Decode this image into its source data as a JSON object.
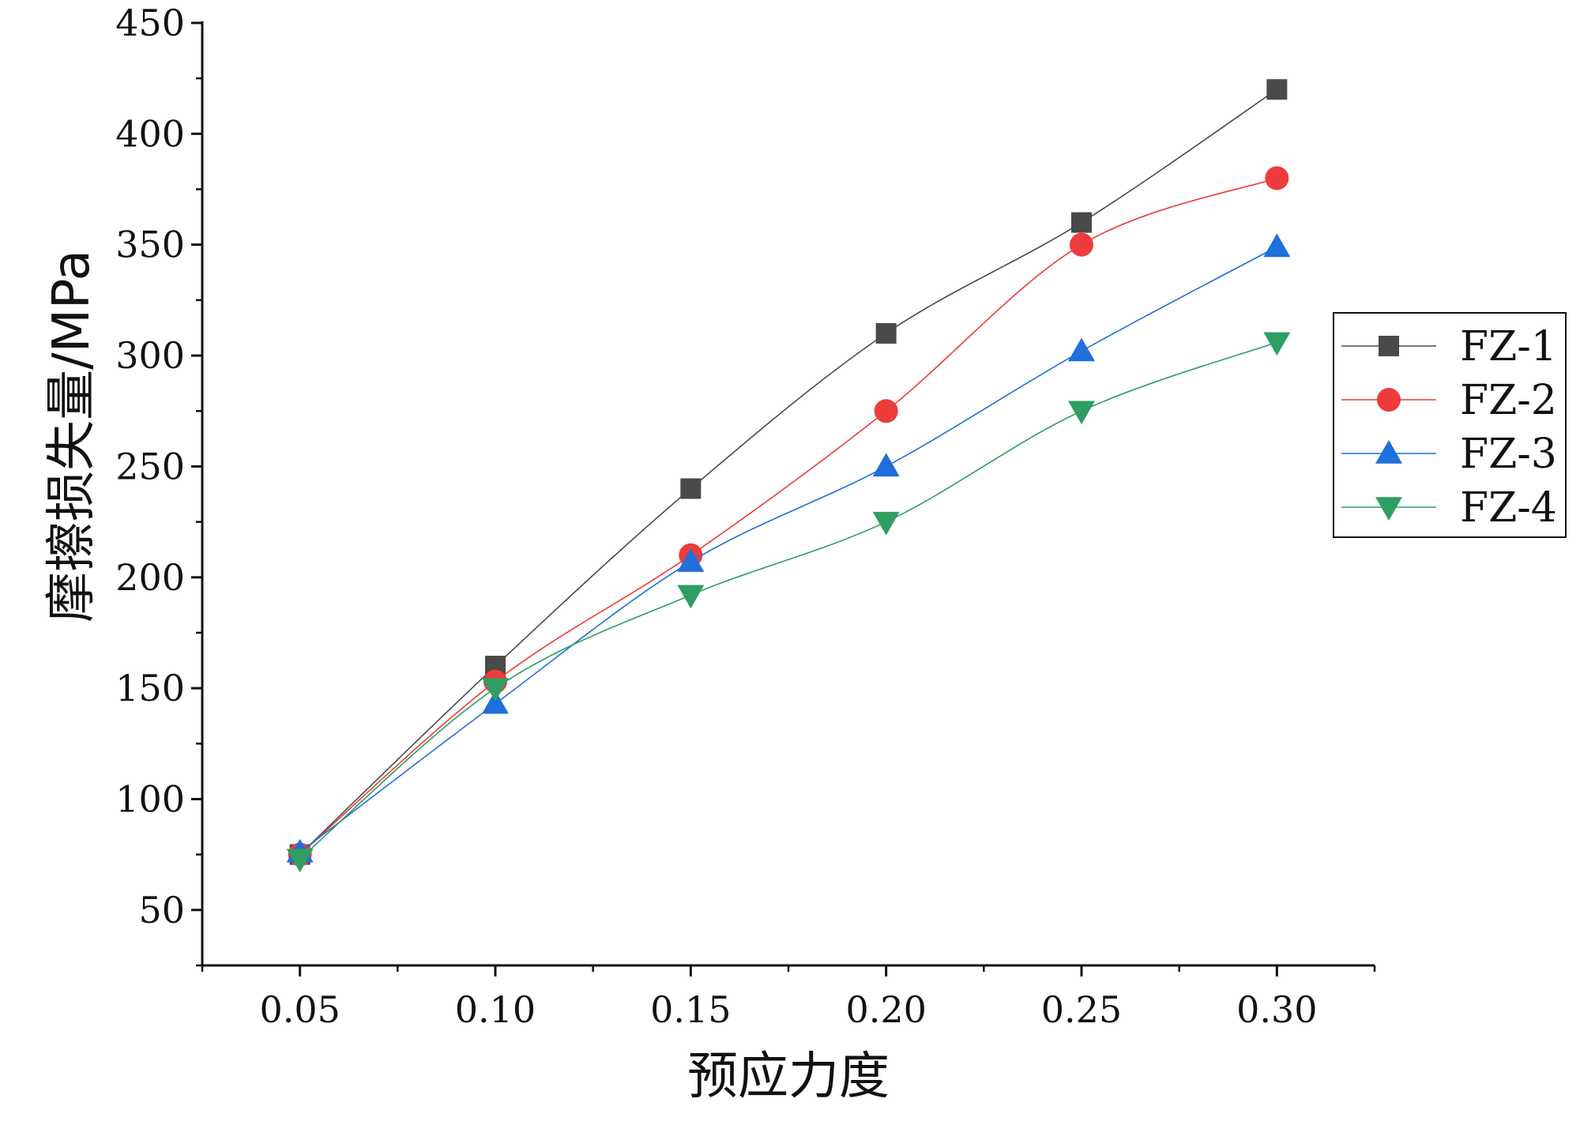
{
  "chart_data": {
    "type": "line",
    "xlabel": "预应力度",
    "ylabel": "摩擦损失量/MPa",
    "x": [
      0.05,
      0.1,
      0.15,
      0.2,
      0.25,
      0.3
    ],
    "x_tick_labels": [
      "0.05",
      "0.10",
      "0.15",
      "0.20",
      "0.25",
      "0.30"
    ],
    "xlim": [
      0.025,
      0.325
    ],
    "ylim": [
      25,
      450
    ],
    "y_ticks": [
      50,
      100,
      150,
      200,
      250,
      300,
      350,
      400,
      450
    ],
    "y_tick_labels": [
      "50",
      "100",
      "150",
      "200",
      "250",
      "300",
      "350",
      "400",
      "450"
    ],
    "grid": false,
    "legend_position": "right",
    "series": [
      {
        "name": "FZ-1",
        "color": "#4a4a4a",
        "marker": "square",
        "values": [
          75,
          160,
          240,
          310,
          360,
          420
        ]
      },
      {
        "name": "FZ-2",
        "color": "#ee3b3b",
        "marker": "circle",
        "values": [
          75,
          153,
          210,
          275,
          350,
          380
        ]
      },
      {
        "name": "FZ-3",
        "color": "#1f6fdc",
        "marker": "triangle-up",
        "values": [
          76,
          143,
          207,
          250,
          302,
          349
        ]
      },
      {
        "name": "FZ-4",
        "color": "#2e9e62",
        "marker": "triangle-down",
        "values": [
          73,
          150,
          192,
          225,
          275,
          306
        ]
      }
    ]
  }
}
